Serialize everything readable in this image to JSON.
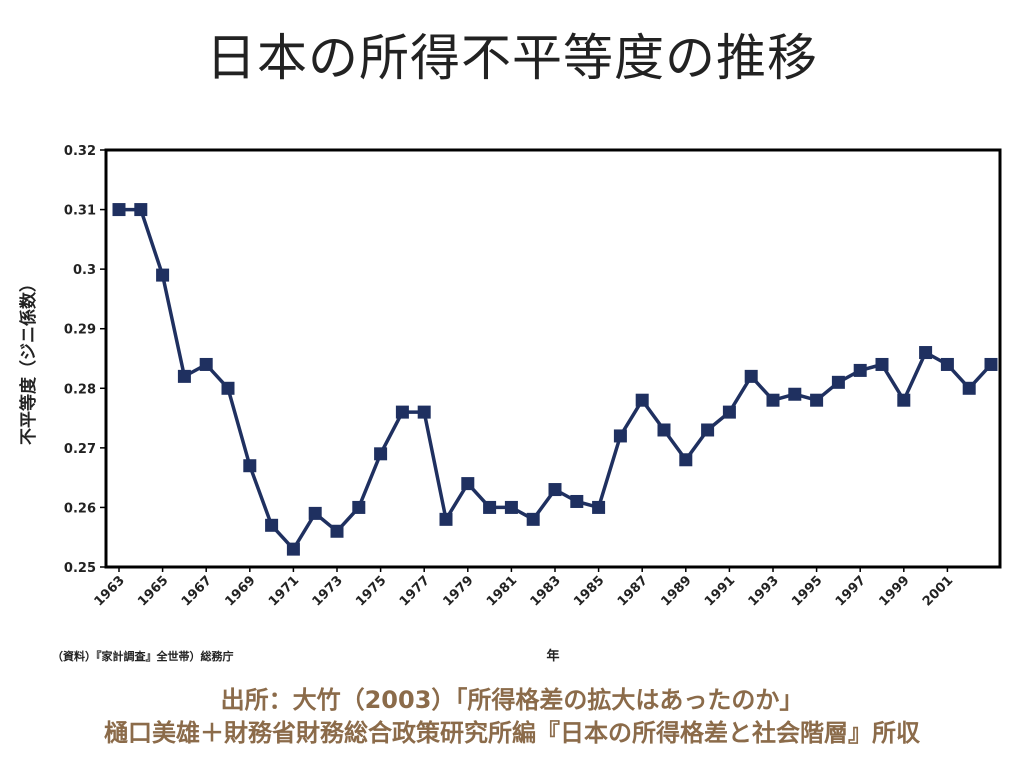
{
  "title": "日本の所得不平等度の推移",
  "source_note": "（資料）『家計調査』全世帯）総務庁",
  "caption_line1": "出所：大竹（2003）「所得格差の拡大はあったのか」",
  "caption_line2": "樋口美雄＋財務省財務総合政策研究所編『日本の所得格差と社会階層』所収",
  "colors": {
    "line": "#1f3060",
    "marker": "#1f3060",
    "frame": "#000000",
    "caption": "#8b6b4a"
  },
  "chart_data": {
    "type": "line",
    "title": "",
    "xlabel": "年",
    "ylabel": "不平等度（ジニ係数）",
    "ylim": [
      0.25,
      0.32
    ],
    "xlim": [
      1963,
      2003
    ],
    "grid": false,
    "yticks": [
      "0.25",
      "0.26",
      "0.27",
      "0.28",
      "0.29",
      "0.3",
      "0.31",
      "0.32"
    ],
    "xticks": [
      "1963",
      "1965",
      "1967",
      "1969",
      "1971",
      "1973",
      "1975",
      "1977",
      "1979",
      "1981",
      "1983",
      "1985",
      "1987",
      "1989",
      "1991",
      "1993",
      "1995",
      "1997",
      "1999",
      "2001"
    ],
    "series": [
      {
        "x": [
          1963,
          1964,
          1965,
          1966,
          1967,
          1968,
          1969,
          1970,
          1971,
          1972,
          1973,
          1974,
          1975,
          1976,
          1977,
          1978,
          1979,
          1980,
          1981,
          1982,
          1983,
          1984,
          1985,
          1986,
          1987,
          1988,
          1989,
          1990,
          1991,
          1992,
          1993,
          1994,
          1995,
          1996,
          1997,
          1998,
          1999,
          2000,
          2001,
          2002,
          2003
        ],
        "values": [
          0.31,
          0.31,
          0.299,
          0.282,
          0.284,
          0.28,
          0.267,
          0.257,
          0.253,
          0.259,
          0.256,
          0.26,
          0.269,
          0.276,
          0.276,
          0.258,
          0.264,
          0.26,
          0.26,
          0.258,
          0.263,
          0.261,
          0.26,
          0.272,
          0.278,
          0.273,
          0.268,
          0.273,
          0.276,
          0.282,
          0.278,
          0.279,
          0.278,
          0.281,
          0.283,
          0.284,
          0.278,
          0.286,
          0.284,
          0.28,
          0.284
        ]
      }
    ]
  }
}
